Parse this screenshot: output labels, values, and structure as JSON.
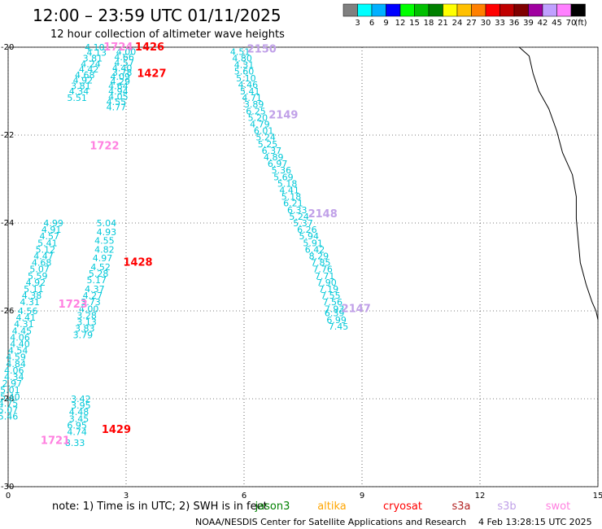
{
  "title": "12:00 – 23:59 UTC 01/11/2025",
  "subtitle": "12 hour collection of altimeter wave heights",
  "footer": {
    "note_prefix": "note:  1) Time is in UTC; 2) SWH is in feet",
    "credit": "NOAA/NESDIS Center for Satellite Applications and Research",
    "timestamp": "4 Feb 13:28:15 UTC 2025"
  },
  "satellite_legend": [
    {
      "name": "jason3",
      "color": "#008000"
    },
    {
      "name": "altika",
      "color": "#ffa500"
    },
    {
      "name": "cryosat",
      "color": "#ff0000"
    },
    {
      "name": "s3a",
      "color": "#b22222"
    },
    {
      "name": "s3b",
      "color": "#c0a0e8"
    },
    {
      "name": "swot",
      "color": "#ff80e0"
    }
  ],
  "color_scale": {
    "unit": "(ft)",
    "labels": [
      "3",
      "6",
      "9",
      "12",
      "15",
      "18",
      "21",
      "24",
      "27",
      "30",
      "33",
      "36",
      "39",
      "42",
      "45",
      "70"
    ],
    "colors": [
      "#808080",
      "#00ffff",
      "#00b0ff",
      "#0000ff",
      "#00ff00",
      "#00c000",
      "#008000",
      "#ffff00",
      "#ffc000",
      "#ff8000",
      "#ff0000",
      "#c00000",
      "#800000",
      "#a000a0",
      "#c0a0ff",
      "#ff80ff",
      "#000000"
    ]
  },
  "chart_data": {
    "type": "scatter",
    "title": "12:00 – 23:59 UTC 01/11/2025",
    "subtitle": "12 hour collection of altimeter wave heights",
    "xlabel": "",
    "ylabel": "",
    "xlim": [
      0,
      15
    ],
    "ylim": [
      -30,
      -20
    ],
    "x_ticks": [
      "0",
      "3",
      "6",
      "9",
      "12",
      "15"
    ],
    "y_ticks": [
      "-20",
      "-22",
      "-24",
      "-26",
      "-28",
      "-30"
    ],
    "grid": true,
    "coastline": [
      [
        13.0,
        -20.0
      ],
      [
        13.25,
        -20.2
      ],
      [
        13.35,
        -20.6
      ],
      [
        13.5,
        -21.0
      ],
      [
        13.75,
        -21.4
      ],
      [
        13.95,
        -21.9
      ],
      [
        14.1,
        -22.4
      ],
      [
        14.35,
        -22.9
      ],
      [
        14.45,
        -23.4
      ],
      [
        14.45,
        -23.9
      ],
      [
        14.5,
        -24.4
      ],
      [
        14.55,
        -24.9
      ],
      [
        14.7,
        -25.4
      ],
      [
        14.85,
        -25.8
      ],
      [
        14.95,
        -26.0
      ],
      [
        15.0,
        -26.2
      ]
    ],
    "series": [
      {
        "name": "1426",
        "label_color": "#ff0000",
        "label": [
          3.6,
          -20.0
        ],
        "points": [
          {
            "x": 2.2,
            "y": -20.0,
            "v": "4.10"
          },
          {
            "x": 2.25,
            "y": -20.12,
            "v": "4.13"
          },
          {
            "x": 2.15,
            "y": -20.25,
            "v": "3.81"
          },
          {
            "x": 2.1,
            "y": -20.38,
            "v": "4.24"
          },
          {
            "x": 2.05,
            "y": -20.5,
            "v": "4.42"
          },
          {
            "x": 1.95,
            "y": -20.63,
            "v": "4.68"
          },
          {
            "x": 1.9,
            "y": -20.75,
            "v": "4.92"
          },
          {
            "x": 1.85,
            "y": -20.88,
            "v": "3.81"
          },
          {
            "x": 1.8,
            "y": -21.0,
            "v": "4.34"
          },
          {
            "x": 1.75,
            "y": -21.15,
            "v": "5.51"
          }
        ]
      },
      {
        "name": "1427",
        "label_color": "#ff0000",
        "label": [
          3.65,
          -20.6
        ],
        "points": [
          {
            "x": 3.0,
            "y": -20.1,
            "v": "4.00"
          },
          {
            "x": 2.95,
            "y": -20.22,
            "v": "4.66"
          },
          {
            "x": 2.95,
            "y": -20.35,
            "v": "4.57"
          },
          {
            "x": 2.9,
            "y": -20.47,
            "v": "4.40"
          },
          {
            "x": 2.9,
            "y": -20.57,
            "v": "3.78"
          },
          {
            "x": 2.85,
            "y": -20.67,
            "v": "4.09"
          },
          {
            "x": 2.85,
            "y": -20.78,
            "v": "4.29"
          },
          {
            "x": 2.8,
            "y": -20.88,
            "v": "4.64"
          },
          {
            "x": 2.8,
            "y": -21.0,
            "v": "4.94"
          },
          {
            "x": 2.8,
            "y": -21.12,
            "v": "4.05"
          },
          {
            "x": 2.75,
            "y": -21.24,
            "v": "4.55"
          },
          {
            "x": 2.75,
            "y": -21.36,
            "v": "4.77"
          }
        ]
      },
      {
        "name": "1428",
        "label_color": "#ff0000",
        "label": [
          3.3,
          -24.9
        ],
        "points": [
          {
            "x": 2.5,
            "y": -24.0,
            "v": "5.04"
          },
          {
            "x": 2.5,
            "y": -24.2,
            "v": "4.93"
          },
          {
            "x": 2.45,
            "y": -24.4,
            "v": "4.55"
          },
          {
            "x": 2.45,
            "y": -24.6,
            "v": "4.82"
          },
          {
            "x": 2.4,
            "y": -24.8,
            "v": "4.97"
          },
          {
            "x": 2.35,
            "y": -25.0,
            "v": "4.52"
          },
          {
            "x": 2.3,
            "y": -25.15,
            "v": "5.28"
          },
          {
            "x": 2.25,
            "y": -25.3,
            "v": "5.17"
          },
          {
            "x": 2.2,
            "y": -25.5,
            "v": "4.37"
          },
          {
            "x": 2.15,
            "y": -25.65,
            "v": "4.27"
          },
          {
            "x": 2.1,
            "y": -25.8,
            "v": "3.73"
          },
          {
            "x": 2.05,
            "y": -25.95,
            "v": "4.00"
          },
          {
            "x": 2.0,
            "y": -26.1,
            "v": "3.28"
          },
          {
            "x": 2.0,
            "y": -26.25,
            "v": "3.13"
          },
          {
            "x": 1.95,
            "y": -26.4,
            "v": "3.83"
          },
          {
            "x": 1.9,
            "y": -26.55,
            "v": "3.79"
          }
        ]
      },
      {
        "name": "1429",
        "label_color": "#ff0000",
        "label": [
          2.75,
          -28.7
        ],
        "points": [
          {
            "x": 1.85,
            "y": -28.0,
            "v": "3.42"
          },
          {
            "x": 1.85,
            "y": -28.15,
            "v": "3.95"
          },
          {
            "x": 1.8,
            "y": -28.3,
            "v": "4.48"
          },
          {
            "x": 1.8,
            "y": -28.45,
            "v": "3.45"
          },
          {
            "x": 1.75,
            "y": -28.6,
            "v": "6.95"
          },
          {
            "x": 1.75,
            "y": -28.75,
            "v": "4.74"
          },
          {
            "x": 1.7,
            "y": -29.0,
            "v": "8.33"
          }
        ]
      },
      {
        "name": "1721",
        "label_color": "#ff80e0",
        "label": [
          1.2,
          -28.95
        ],
        "points": [
          {
            "x": 1.15,
            "y": -24.0,
            "v": "4.99"
          },
          {
            "x": 1.1,
            "y": -24.15,
            "v": "4.91"
          },
          {
            "x": 1.05,
            "y": -24.3,
            "v": "4.57"
          },
          {
            "x": 1.0,
            "y": -24.45,
            "v": "5.41"
          },
          {
            "x": 0.95,
            "y": -24.6,
            "v": "5.12"
          },
          {
            "x": 0.9,
            "y": -24.75,
            "v": "4.47"
          },
          {
            "x": 0.85,
            "y": -24.9,
            "v": "4.68"
          },
          {
            "x": 0.8,
            "y": -25.05,
            "v": "5.07"
          },
          {
            "x": 0.75,
            "y": -25.2,
            "v": "5.59"
          },
          {
            "x": 0.7,
            "y": -25.35,
            "v": "4.92"
          },
          {
            "x": 0.65,
            "y": -25.5,
            "v": "5.11"
          },
          {
            "x": 0.6,
            "y": -25.65,
            "v": "4.38"
          },
          {
            "x": 0.55,
            "y": -25.8,
            "v": "4.31"
          },
          {
            "x": 0.5,
            "y": -26.0,
            "v": "4.56"
          },
          {
            "x": 0.45,
            "y": -26.15,
            "v": "4.41"
          },
          {
            "x": 0.4,
            "y": -26.3,
            "v": "4.31"
          },
          {
            "x": 0.35,
            "y": -26.45,
            "v": "4.45"
          },
          {
            "x": 0.3,
            "y": -26.6,
            "v": "4.06"
          },
          {
            "x": 0.3,
            "y": -26.75,
            "v": "4.40"
          },
          {
            "x": 0.25,
            "y": -26.9,
            "v": "4.54"
          },
          {
            "x": 0.2,
            "y": -27.05,
            "v": "4.59"
          },
          {
            "x": 0.2,
            "y": -27.2,
            "v": "4.84"
          },
          {
            "x": 0.15,
            "y": -27.35,
            "v": "4.06"
          },
          {
            "x": 0.15,
            "y": -27.5,
            "v": "4.34"
          },
          {
            "x": 0.1,
            "y": -27.65,
            "v": "2.97"
          },
          {
            "x": 0.05,
            "y": -27.8,
            "v": "5.01"
          },
          {
            "x": 0.05,
            "y": -27.95,
            "v": "5.40"
          },
          {
            "x": 0.0,
            "y": -28.1,
            "v": "4.75"
          },
          {
            "x": 0.0,
            "y": -28.25,
            "v": "5.07"
          },
          {
            "x": 0.0,
            "y": -28.4,
            "v": "5.46"
          }
        ]
      },
      {
        "name": "1722",
        "label_color": "#ff80e0",
        "label": [
          2.45,
          -22.25
        ],
        "points": []
      },
      {
        "name": "1723",
        "label_color": "#ff80e0",
        "label": [
          1.65,
          -25.85
        ],
        "points": []
      },
      {
        "name": "1724",
        "label_color": "#ff80e0",
        "label": [
          2.8,
          -20.0
        ],
        "points": []
      },
      {
        "name": "2150",
        "label_color": "#c0a0e8",
        "label": [
          6.45,
          -20.05
        ],
        "points": [
          {
            "x": 5.9,
            "y": -20.1,
            "v": "4.51"
          },
          {
            "x": 5.95,
            "y": -20.25,
            "v": "4.80"
          },
          {
            "x": 6.0,
            "y": -20.4,
            "v": "4.31"
          },
          {
            "x": 6.0,
            "y": -20.55,
            "v": "5.60"
          },
          {
            "x": 6.05,
            "y": -20.7,
            "v": "5.10"
          },
          {
            "x": 6.1,
            "y": -20.85,
            "v": "4.46"
          },
          {
            "x": 6.15,
            "y": -21.0,
            "v": "5.41"
          },
          {
            "x": 6.2,
            "y": -21.15,
            "v": "4.71"
          },
          {
            "x": 6.25,
            "y": -21.3,
            "v": "3.89"
          },
          {
            "x": 6.3,
            "y": -21.45,
            "v": "6.25"
          }
        ]
      },
      {
        "name": "2149",
        "label_color": "#c0a0e8",
        "label": [
          7.0,
          -21.55
        ],
        "points": [
          {
            "x": 6.35,
            "y": -21.6,
            "v": "5.20"
          },
          {
            "x": 6.4,
            "y": -21.75,
            "v": "4.79"
          },
          {
            "x": 6.5,
            "y": -21.9,
            "v": "6.01"
          },
          {
            "x": 6.55,
            "y": -22.05,
            "v": "5.24"
          },
          {
            "x": 6.6,
            "y": -22.2,
            "v": "5.25"
          },
          {
            "x": 6.7,
            "y": -22.35,
            "v": "6.37"
          },
          {
            "x": 6.75,
            "y": -22.5,
            "v": "4.89"
          },
          {
            "x": 6.85,
            "y": -22.65,
            "v": "6.97"
          },
          {
            "x": 6.95,
            "y": -22.8,
            "v": "5.36"
          },
          {
            "x": 7.0,
            "y": -22.95,
            "v": "5.69"
          },
          {
            "x": 7.1,
            "y": -23.1,
            "v": "5.18"
          },
          {
            "x": 7.15,
            "y": -23.25,
            "v": "4.41"
          },
          {
            "x": 7.2,
            "y": -23.4,
            "v": "5.18"
          },
          {
            "x": 7.25,
            "y": -23.55,
            "v": "6.21"
          },
          {
            "x": 7.35,
            "y": -23.7,
            "v": "6.33"
          },
          {
            "x": 7.4,
            "y": -23.85,
            "v": "5.24"
          }
        ]
      },
      {
        "name": "2148",
        "label_color": "#c0a0e8",
        "label": [
          8.0,
          -23.8
        ],
        "points": [
          {
            "x": 7.5,
            "y": -24.0,
            "v": "5.37"
          },
          {
            "x": 7.6,
            "y": -24.15,
            "v": "6.26"
          },
          {
            "x": 7.65,
            "y": -24.3,
            "v": "5.94"
          },
          {
            "x": 7.75,
            "y": -24.45,
            "v": "5.91"
          },
          {
            "x": 7.8,
            "y": -24.6,
            "v": "6.42"
          },
          {
            "x": 7.9,
            "y": -24.75,
            "v": "8.29"
          },
          {
            "x": 7.95,
            "y": -24.9,
            "v": "7.85"
          },
          {
            "x": 8.0,
            "y": -25.05,
            "v": "7.76"
          },
          {
            "x": 8.05,
            "y": -25.2,
            "v": "7.71"
          },
          {
            "x": 8.1,
            "y": -25.35,
            "v": "7.90"
          },
          {
            "x": 8.15,
            "y": -25.5,
            "v": "7.19"
          },
          {
            "x": 8.2,
            "y": -25.65,
            "v": "7.55"
          },
          {
            "x": 8.25,
            "y": -25.8,
            "v": "7.56"
          },
          {
            "x": 8.3,
            "y": -25.95,
            "v": "7.93"
          }
        ]
      },
      {
        "name": "2147",
        "label_color": "#c0a0e8",
        "label": [
          8.85,
          -25.95
        ],
        "points": [
          {
            "x": 8.3,
            "y": -26.05,
            "v": "6.39"
          },
          {
            "x": 8.35,
            "y": -26.2,
            "v": "6.99"
          },
          {
            "x": 8.4,
            "y": -26.35,
            "v": "7.45"
          }
        ]
      }
    ]
  }
}
